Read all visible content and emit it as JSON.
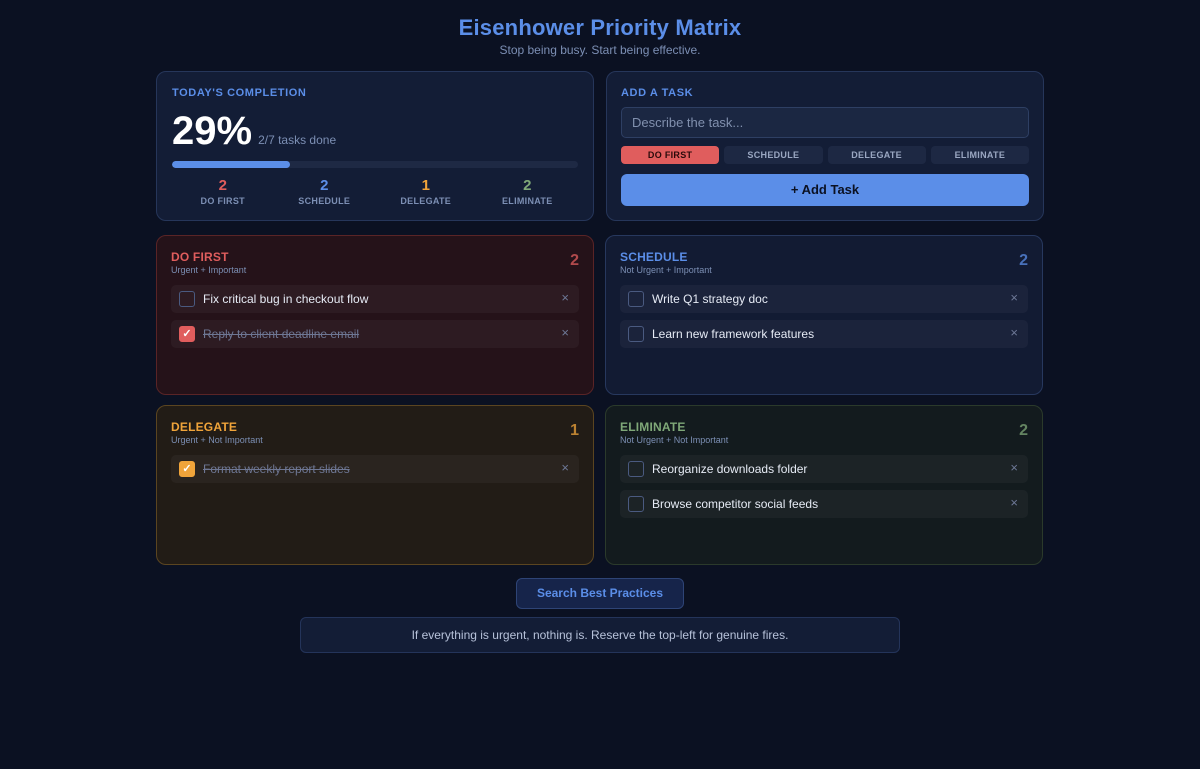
{
  "header": {
    "title": "Eisenhower Priority Matrix",
    "subtitle": "Stop being busy. Start being effective."
  },
  "completion": {
    "label": "TODAY'S COMPLETION",
    "percent_text": "29%",
    "tasks_done_text": "2/7 tasks done",
    "progress": 0.29,
    "stats": [
      {
        "value": "2",
        "label": "DO FIRST",
        "color": "#e05d5d"
      },
      {
        "value": "2",
        "label": "SCHEDULE",
        "color": "#5b8ee8"
      },
      {
        "value": "1",
        "label": "DELEGATE",
        "color": "#f0a43a"
      },
      {
        "value": "2",
        "label": "ELIMINATE",
        "color": "#7fa878"
      }
    ]
  },
  "add_task": {
    "label": "ADD A TASK",
    "placeholder": "Describe the task...",
    "categories": [
      "DO FIRST",
      "SCHEDULE",
      "DELEGATE",
      "ELIMINATE"
    ],
    "selected_category": "DO FIRST",
    "submit_label": "+ Add Task"
  },
  "quadrants": {
    "do_first": {
      "title": "DO FIRST",
      "subtitle": "Urgent + Important",
      "count": "2",
      "color": "#e05d5d",
      "tasks": [
        {
          "text": "Fix critical bug in checkout flow",
          "done": false
        },
        {
          "text": "Reply to client deadline email",
          "done": true
        }
      ]
    },
    "schedule": {
      "title": "SCHEDULE",
      "subtitle": "Not Urgent + Important",
      "count": "2",
      "color": "#5b8ee8",
      "tasks": [
        {
          "text": "Write Q1 strategy doc",
          "done": false
        },
        {
          "text": "Learn new framework features",
          "done": false
        }
      ]
    },
    "delegate": {
      "title": "DELEGATE",
      "subtitle": "Urgent + Not Important",
      "count": "1",
      "color": "#f0a43a",
      "tasks": [
        {
          "text": "Format weekly report slides",
          "done": true
        }
      ]
    },
    "eliminate": {
      "title": "ELIMINATE",
      "subtitle": "Not Urgent + Not Important",
      "count": "2",
      "color": "#7fa878",
      "tasks": [
        {
          "text": "Reorganize downloads folder",
          "done": false
        },
        {
          "text": "Browse competitor social feeds",
          "done": false
        }
      ]
    }
  },
  "checkmark_glyph": "✓",
  "remove_glyph": "×",
  "search_button_label": "Search Best Practices",
  "tip_text": "If everything is urgent, nothing is. Reserve the top-left for genuine fires."
}
